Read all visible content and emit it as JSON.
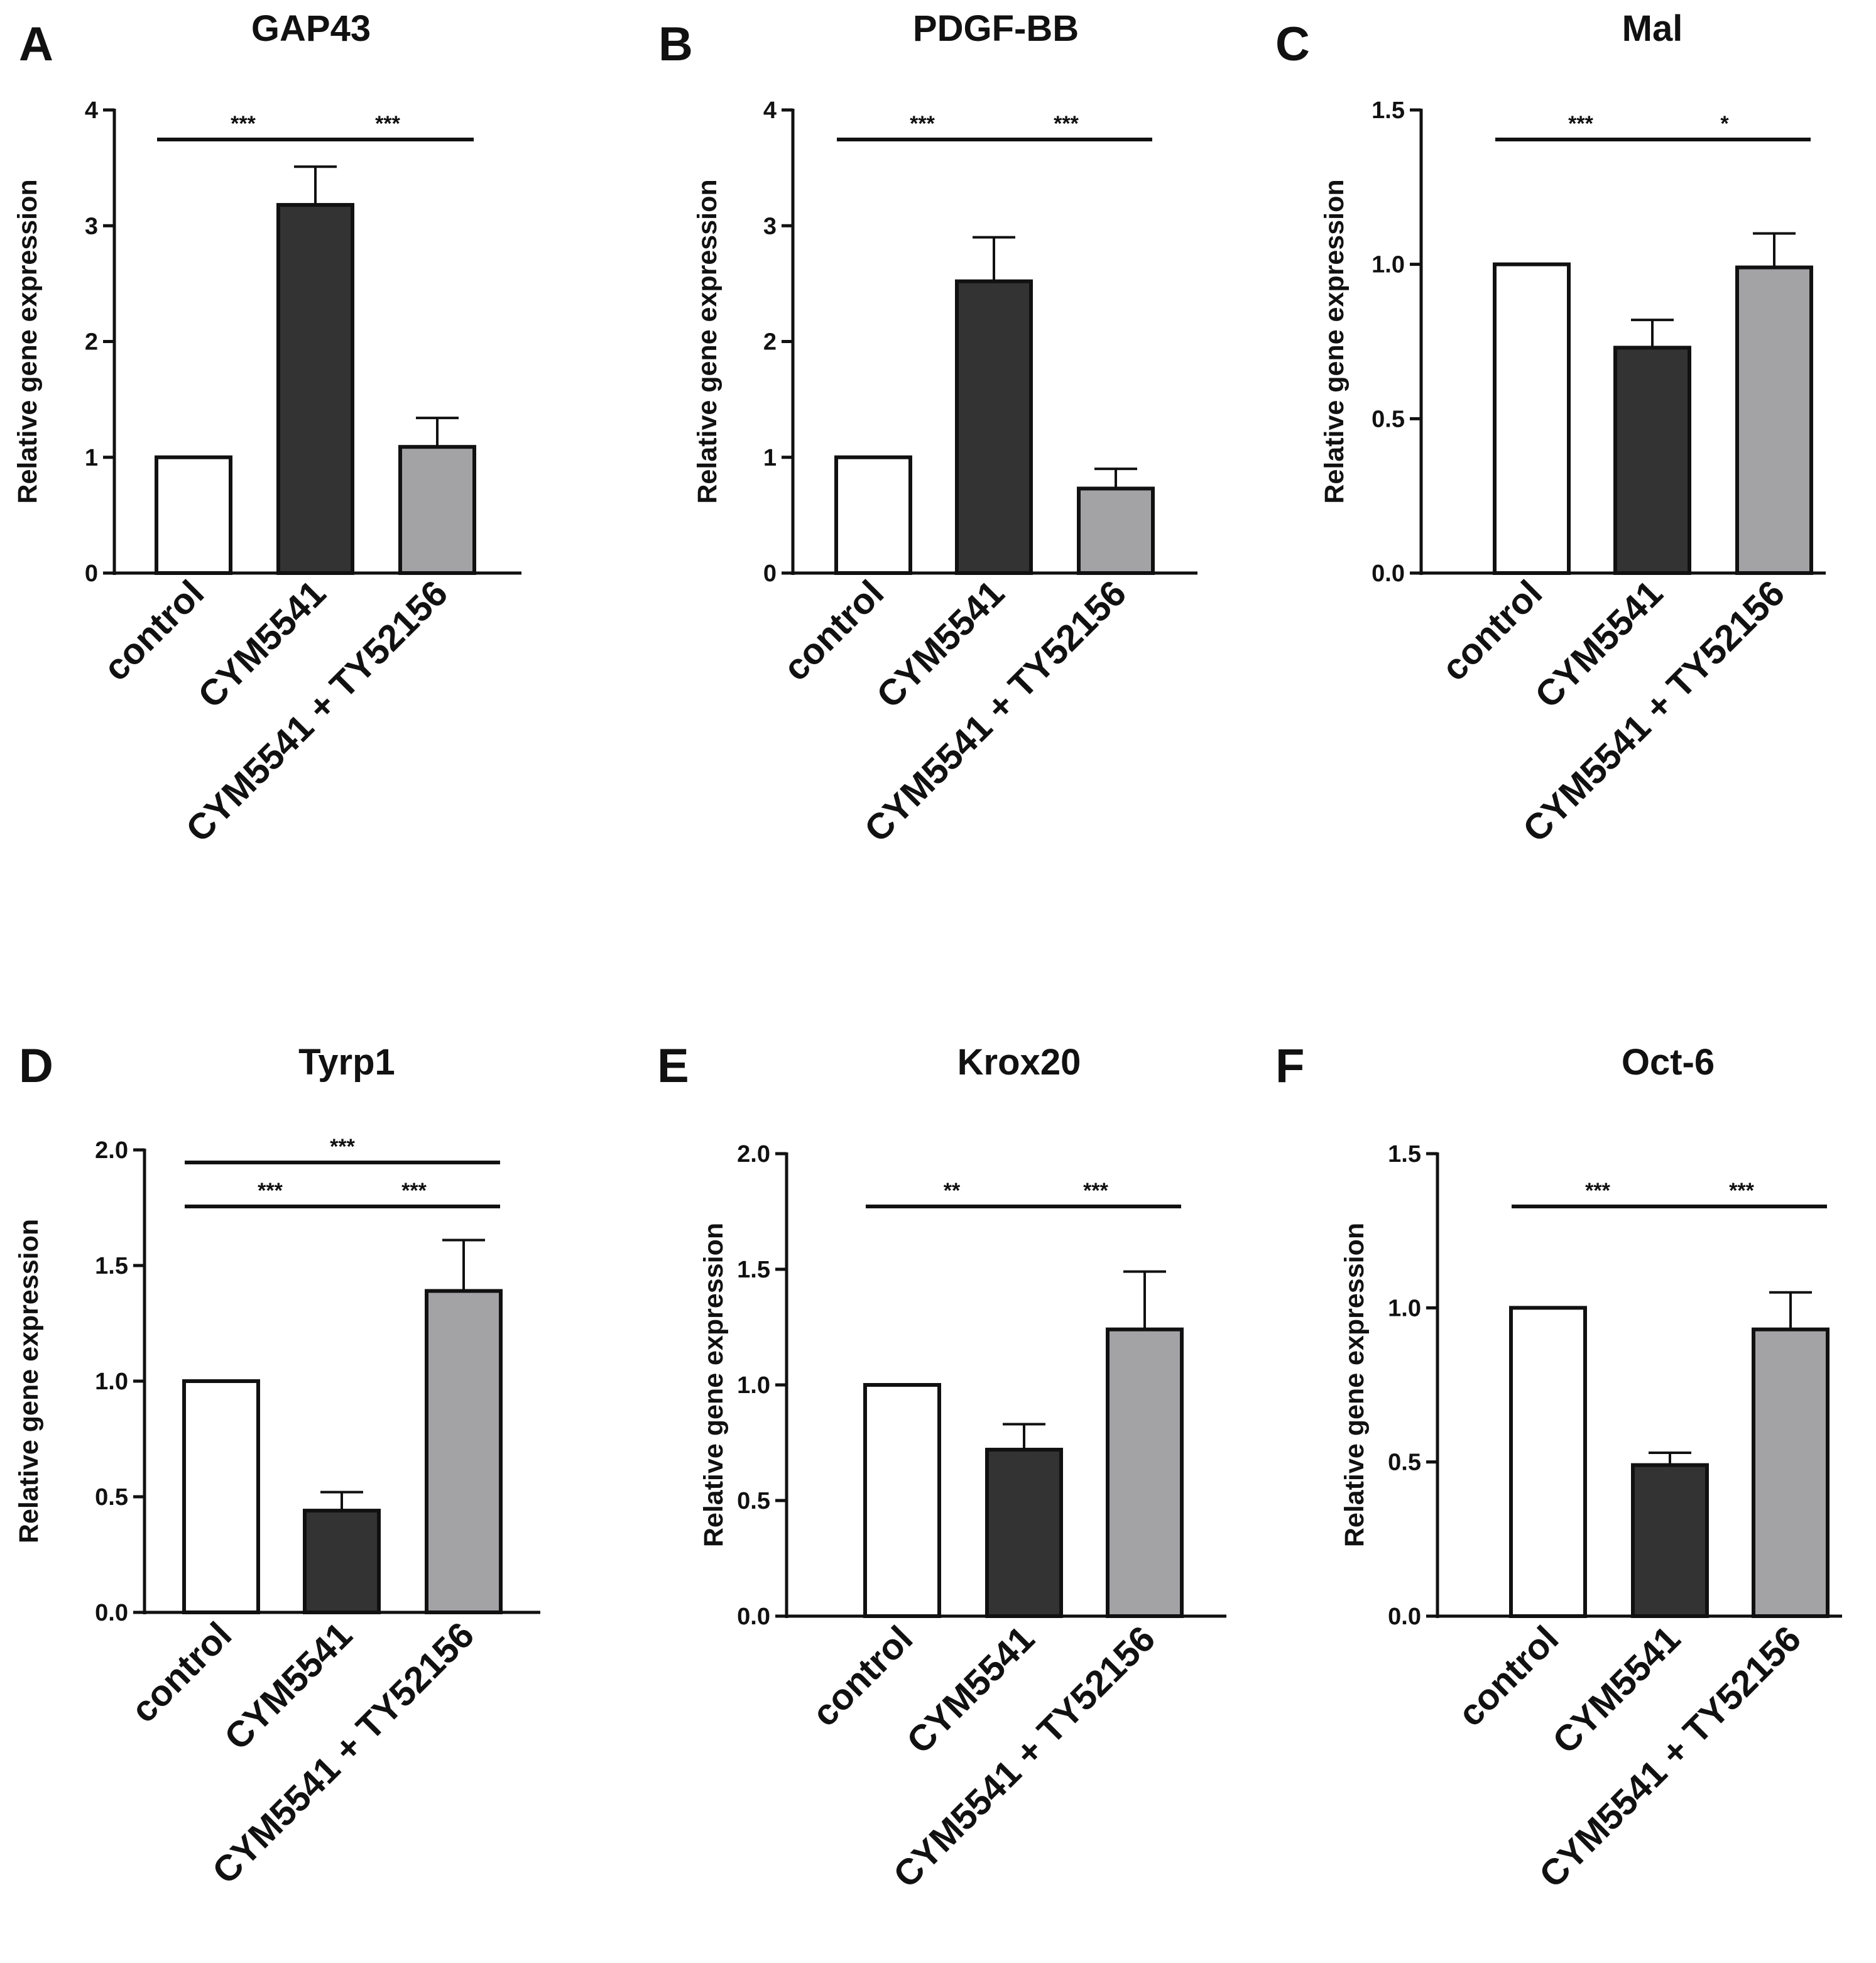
{
  "figure": {
    "categories": [
      "control",
      "CYM5541",
      "CYM5541 + TY52156"
    ],
    "bar_colors": [
      "#ffffff",
      "#333333",
      "#a3a3a6"
    ],
    "axis_color": "#111111"
  },
  "chart_data": [
    {
      "type": "bar",
      "panel": "A",
      "title": "GAP43",
      "xlabel": "",
      "ylabel": "Relative gene expression",
      "categories": [
        "control",
        "CYM5541",
        "CYM5541 + TY52156"
      ],
      "values": [
        1.0,
        3.18,
        1.09
      ],
      "errors": [
        0,
        0.33,
        0.25
      ],
      "ylim": [
        0,
        4
      ],
      "yticks": [
        "0",
        "1",
        "2",
        "3",
        "4"
      ],
      "significance": [
        {
          "from": 0,
          "to": 1,
          "level": 0,
          "label": "***"
        },
        {
          "from": 1,
          "to": 2,
          "level": 0,
          "label": "***"
        }
      ]
    },
    {
      "type": "bar",
      "panel": "B",
      "title": "PDGF-BB",
      "xlabel": "",
      "ylabel": "Relative gene expression",
      "categories": [
        "control",
        "CYM5541",
        "CYM5541 + TY52156"
      ],
      "values": [
        1.0,
        2.52,
        0.73
      ],
      "errors": [
        0,
        0.38,
        0.17
      ],
      "ylim": [
        0,
        4
      ],
      "yticks": [
        "0",
        "1",
        "2",
        "3",
        "4"
      ],
      "significance": [
        {
          "from": 0,
          "to": 1,
          "level": 0,
          "label": "***"
        },
        {
          "from": 1,
          "to": 2,
          "level": 0,
          "label": "***"
        }
      ]
    },
    {
      "type": "bar",
      "panel": "C",
      "title": "Mal",
      "xlabel": "",
      "ylabel": "Relative gene expression",
      "categories": [
        "control",
        "CYM5541",
        "CYM5541 + TY52156"
      ],
      "values": [
        1.0,
        0.73,
        0.99
      ],
      "errors": [
        0,
        0.09,
        0.11
      ],
      "ylim": [
        0,
        1.5
      ],
      "yticks": [
        "0.0",
        "0.5",
        "1.0",
        "1.5"
      ],
      "significance": [
        {
          "from": 0,
          "to": 1,
          "level": 0,
          "label": "***"
        },
        {
          "from": 1,
          "to": 2,
          "level": 0,
          "label": "*"
        }
      ]
    },
    {
      "type": "bar",
      "panel": "D",
      "title": "Tyrp1",
      "xlabel": "",
      "ylabel": "Relative gene expression",
      "categories": [
        "control",
        "CYM5541",
        "CYM5541 + TY52156"
      ],
      "values": [
        1.0,
        0.44,
        1.39
      ],
      "errors": [
        0,
        0.08,
        0.22
      ],
      "ylim": [
        0,
        2.0
      ],
      "yticks": [
        "0.0",
        "0.5",
        "1.0",
        "1.5",
        "2.0"
      ],
      "significance": [
        {
          "from": 0,
          "to": 2,
          "level": 1,
          "label": "***"
        },
        {
          "from": 0,
          "to": 1,
          "level": 0,
          "label": "***"
        },
        {
          "from": 1,
          "to": 2,
          "level": 0,
          "label": "***"
        }
      ]
    },
    {
      "type": "bar",
      "panel": "E",
      "title": "Krox20",
      "xlabel": "",
      "ylabel": "Relative gene expression",
      "categories": [
        "control",
        "CYM5541",
        "CYM5541 + TY52156"
      ],
      "values": [
        1.0,
        0.72,
        1.24
      ],
      "errors": [
        0,
        0.11,
        0.25
      ],
      "ylim": [
        0,
        2.0
      ],
      "yticks": [
        "0.0",
        "0.5",
        "1.0",
        "1.5",
        "2.0"
      ],
      "significance": [
        {
          "from": 0,
          "to": 1,
          "level": 0,
          "label": "**"
        },
        {
          "from": 1,
          "to": 2,
          "level": 0,
          "label": "***"
        }
      ]
    },
    {
      "type": "bar",
      "panel": "F",
      "title": "Oct-6",
      "xlabel": "",
      "ylabel": "Relative gene expression",
      "categories": [
        "control",
        "CYM5541",
        "CYM5541 + TY52156"
      ],
      "values": [
        1.0,
        0.49,
        0.93
      ],
      "errors": [
        0,
        0.04,
        0.12
      ],
      "ylim": [
        0,
        1.5
      ],
      "yticks": [
        "0.0",
        "0.5",
        "1.0",
        "1.5"
      ],
      "significance": [
        {
          "from": 0,
          "to": 1,
          "level": 0,
          "label": "***"
        },
        {
          "from": 1,
          "to": 2,
          "level": 0,
          "label": "***"
        }
      ]
    }
  ]
}
